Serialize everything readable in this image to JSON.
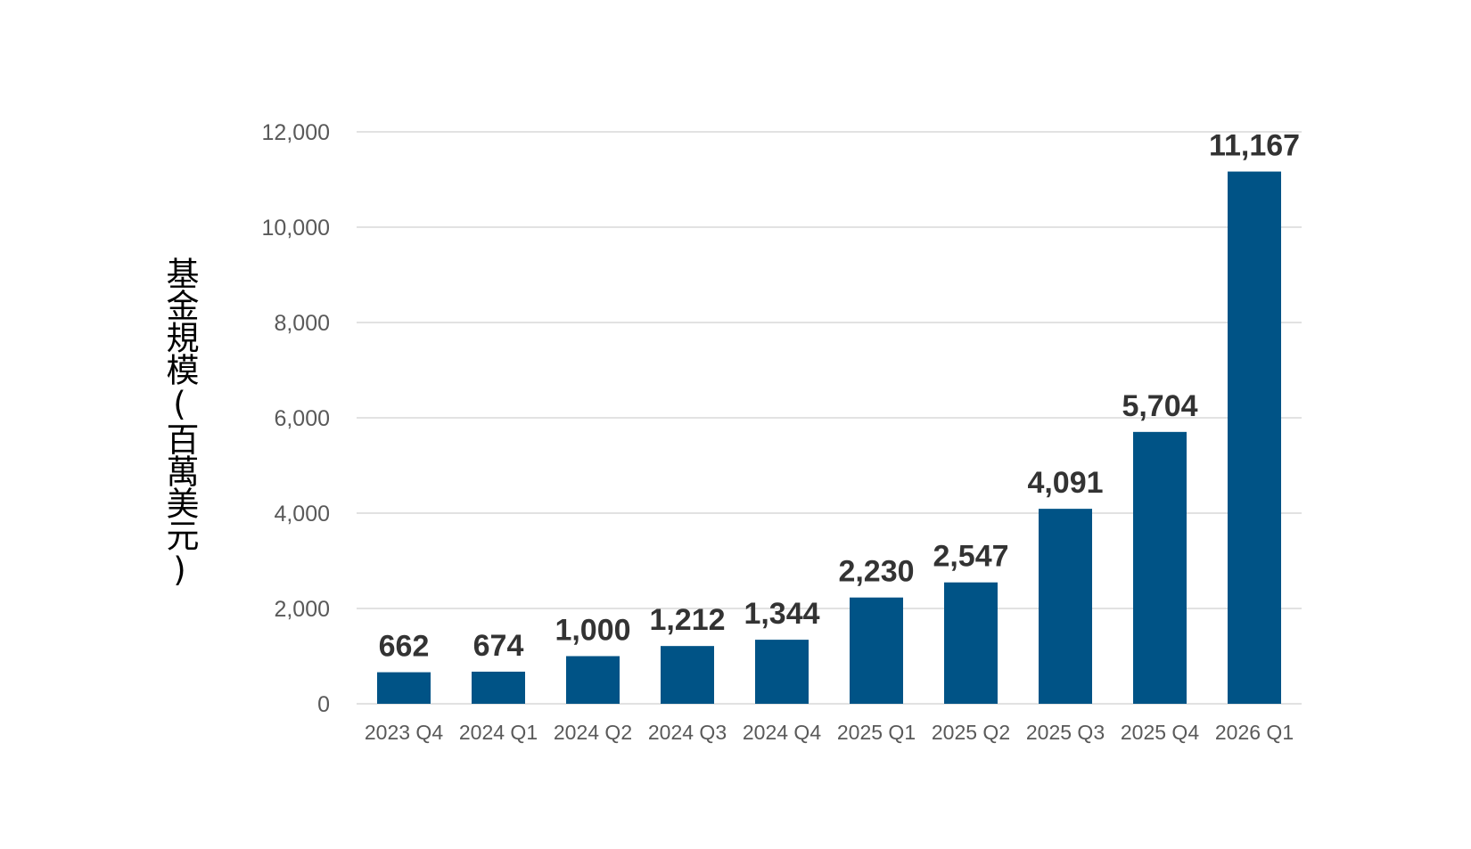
{
  "colors": {
    "bar": "#005386",
    "grid": "#d9d9d9",
    "tick_text": "#595959",
    "data_label": "#333333"
  },
  "chart_data": {
    "type": "bar",
    "ylabel": "基金規模(百萬美元)",
    "xlabel": "",
    "categories": [
      "2023 Q4",
      "2024 Q1",
      "2024 Q2",
      "2024 Q3",
      "2024 Q4",
      "2025 Q1",
      "2025 Q2",
      "2025 Q3",
      "2025 Q4",
      "2026 Q1"
    ],
    "values": [
      662,
      674,
      1000,
      1212,
      1344,
      2230,
      2547,
      4091,
      5704,
      11167
    ],
    "value_labels": [
      "662",
      "674",
      "1,000",
      "1,212",
      "1,344",
      "2,230",
      "2,547",
      "4,091",
      "5,704",
      "11,167"
    ],
    "ylim": [
      0,
      12000
    ],
    "yticks": [
      0,
      2000,
      4000,
      6000,
      8000,
      10000,
      12000
    ],
    "ytick_labels": [
      "0",
      "2,000",
      "4,000",
      "6,000",
      "8,000",
      "10,000",
      "12,000"
    ],
    "grid": true,
    "legend": "none"
  }
}
